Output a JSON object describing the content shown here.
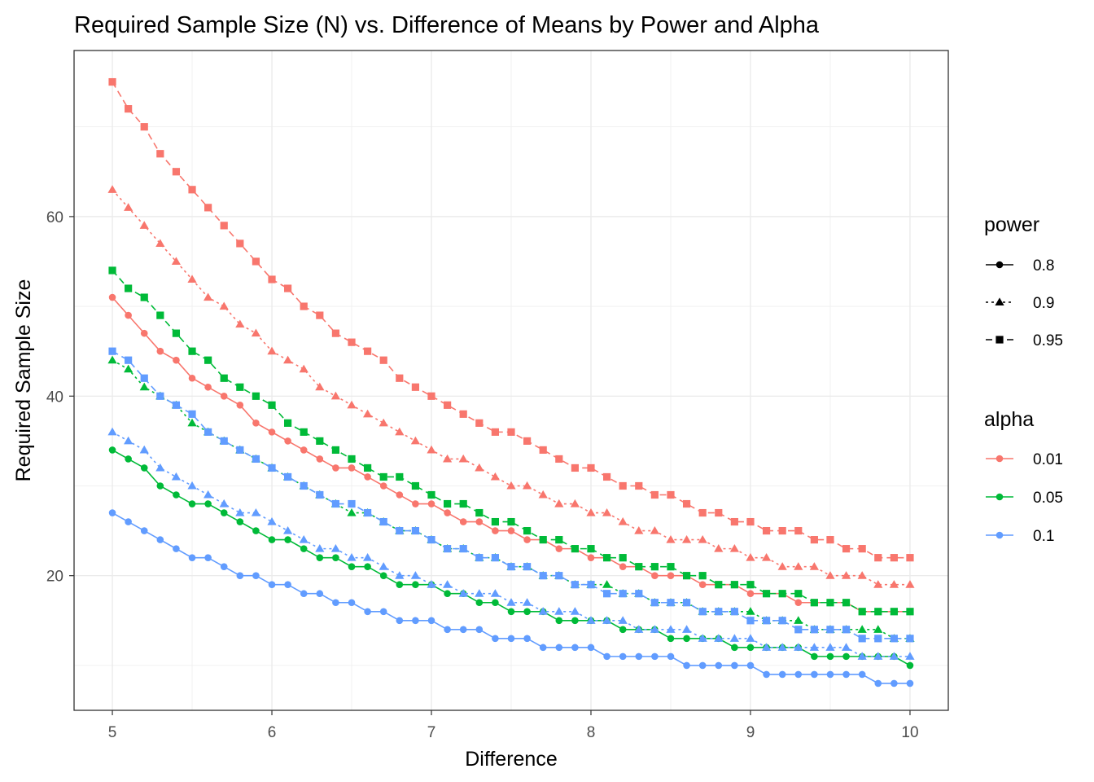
{
  "chart_data": {
    "type": "line",
    "title": "Required Sample Size (N) vs. Difference of Means by Power and Alpha",
    "xlabel": "Difference",
    "ylabel": "Required Sample Size",
    "xlim": [
      4.76,
      10.24
    ],
    "ylim": [
      5.0,
      78.5
    ],
    "xticks": [
      5,
      6,
      7,
      8,
      9,
      10
    ],
    "xtick_labels": [
      "5",
      "6",
      "7",
      "8",
      "9",
      "10"
    ],
    "yticks": [
      20,
      40,
      60
    ],
    "ytick_labels": [
      "20",
      "40",
      "60"
    ],
    "grid": true,
    "legend_position": "right",
    "legend_power": {
      "title": "power",
      "items": [
        {
          "label": "0.8",
          "linetype": "solid",
          "shape": "circle"
        },
        {
          "label": "0.9",
          "linetype": "dotted",
          "shape": "triangle"
        },
        {
          "label": "0.95",
          "linetype": "dashed",
          "shape": "square"
        }
      ]
    },
    "legend_alpha": {
      "title": "alpha",
      "items": [
        {
          "label": "0.01",
          "color": "#F8766D"
        },
        {
          "label": "0.05",
          "color": "#00BA38"
        },
        {
          "label": "0.1",
          "color": "#619CFF"
        }
      ]
    },
    "x": [
      5.0,
      5.1,
      5.2,
      5.3,
      5.4,
      5.5,
      5.6,
      5.7,
      5.8,
      5.9,
      6.0,
      6.1,
      6.2,
      6.3,
      6.4,
      6.5,
      6.6,
      6.7,
      6.8,
      6.9,
      7.0,
      7.1,
      7.2,
      7.3,
      7.4,
      7.5,
      7.6,
      7.7,
      7.8,
      7.9,
      8.0,
      8.1,
      8.2,
      8.3,
      8.4,
      8.5,
      8.6,
      8.7,
      8.8,
      8.9,
      9.0,
      9.1,
      9.2,
      9.3,
      9.4,
      9.5,
      9.6,
      9.7,
      9.8,
      9.9,
      10.0
    ],
    "series": [
      {
        "alpha": "0.01",
        "power": "0.8",
        "values": [
          51,
          49,
          47,
          45,
          44,
          42,
          41,
          40,
          39,
          37,
          36,
          35,
          34,
          33,
          32,
          32,
          31,
          30,
          29,
          28,
          28,
          27,
          26,
          26,
          25,
          25,
          24,
          24,
          23,
          23,
          22,
          22,
          21,
          21,
          20,
          20,
          20,
          19,
          19,
          19,
          18,
          18,
          18,
          17,
          17,
          17,
          17,
          16,
          16,
          16,
          16
        ]
      },
      {
        "alpha": "0.01",
        "power": "0.9",
        "values": [
          63,
          61,
          59,
          57,
          55,
          53,
          51,
          50,
          48,
          47,
          45,
          44,
          43,
          41,
          40,
          39,
          38,
          37,
          36,
          35,
          34,
          33,
          33,
          32,
          31,
          30,
          30,
          29,
          28,
          28,
          27,
          27,
          26,
          25,
          25,
          24,
          24,
          24,
          23,
          23,
          22,
          22,
          21,
          21,
          21,
          20,
          20,
          20,
          19,
          19,
          19
        ]
      },
      {
        "alpha": "0.01",
        "power": "0.95",
        "values": [
          75,
          72,
          70,
          67,
          65,
          63,
          61,
          59,
          57,
          55,
          53,
          52,
          50,
          49,
          47,
          46,
          45,
          44,
          42,
          41,
          40,
          39,
          38,
          37,
          36,
          36,
          35,
          34,
          33,
          32,
          32,
          31,
          30,
          30,
          29,
          29,
          28,
          27,
          27,
          26,
          26,
          25,
          25,
          25,
          24,
          24,
          23,
          23,
          22,
          22,
          22
        ]
      },
      {
        "alpha": "0.05",
        "power": "0.8",
        "values": [
          34,
          33,
          32,
          30,
          29,
          28,
          28,
          27,
          26,
          25,
          24,
          24,
          23,
          22,
          22,
          21,
          21,
          20,
          19,
          19,
          19,
          18,
          18,
          17,
          17,
          16,
          16,
          16,
          15,
          15,
          15,
          15,
          14,
          14,
          14,
          13,
          13,
          13,
          13,
          12,
          12,
          12,
          12,
          12,
          11,
          11,
          11,
          11,
          11,
          11,
          10
        ]
      },
      {
        "alpha": "0.05",
        "power": "0.9",
        "values": [
          44,
          43,
          41,
          40,
          39,
          37,
          36,
          35,
          34,
          33,
          32,
          31,
          30,
          29,
          28,
          27,
          27,
          26,
          25,
          25,
          24,
          23,
          23,
          22,
          22,
          21,
          21,
          20,
          20,
          19,
          19,
          19,
          18,
          18,
          17,
          17,
          17,
          16,
          16,
          16,
          16,
          15,
          15,
          15,
          14,
          14,
          14,
          14,
          14,
          13,
          13
        ]
      },
      {
        "alpha": "0.05",
        "power": "0.95",
        "values": [
          54,
          52,
          51,
          49,
          47,
          45,
          44,
          42,
          41,
          40,
          39,
          37,
          36,
          35,
          34,
          33,
          32,
          31,
          31,
          30,
          29,
          28,
          28,
          27,
          26,
          26,
          25,
          24,
          24,
          23,
          23,
          22,
          22,
          21,
          21,
          21,
          20,
          20,
          19,
          19,
          19,
          18,
          18,
          18,
          17,
          17,
          17,
          16,
          16,
          16,
          16
        ]
      },
      {
        "alpha": "0.1",
        "power": "0.8",
        "values": [
          27,
          26,
          25,
          24,
          23,
          22,
          22,
          21,
          20,
          20,
          19,
          19,
          18,
          18,
          17,
          17,
          16,
          16,
          15,
          15,
          15,
          14,
          14,
          14,
          13,
          13,
          13,
          12,
          12,
          12,
          12,
          11,
          11,
          11,
          11,
          11,
          10,
          10,
          10,
          10,
          10,
          9,
          9,
          9,
          9,
          9,
          9,
          9,
          8,
          8,
          8
        ]
      },
      {
        "alpha": "0.1",
        "power": "0.9",
        "values": [
          36,
          35,
          34,
          32,
          31,
          30,
          29,
          28,
          27,
          27,
          26,
          25,
          24,
          23,
          23,
          22,
          22,
          21,
          20,
          20,
          19,
          19,
          18,
          18,
          18,
          17,
          17,
          16,
          16,
          16,
          15,
          15,
          15,
          14,
          14,
          14,
          14,
          13,
          13,
          13,
          13,
          12,
          12,
          12,
          12,
          12,
          12,
          11,
          11,
          11,
          11
        ]
      },
      {
        "alpha": "0.1",
        "power": "0.95",
        "values": [
          45,
          44,
          42,
          40,
          39,
          38,
          36,
          35,
          34,
          33,
          32,
          31,
          30,
          29,
          28,
          28,
          27,
          26,
          25,
          25,
          24,
          23,
          23,
          22,
          22,
          21,
          21,
          20,
          20,
          19,
          19,
          18,
          18,
          18,
          17,
          17,
          17,
          16,
          16,
          16,
          15,
          15,
          15,
          14,
          14,
          14,
          14,
          13,
          13,
          13,
          13
        ]
      }
    ]
  }
}
